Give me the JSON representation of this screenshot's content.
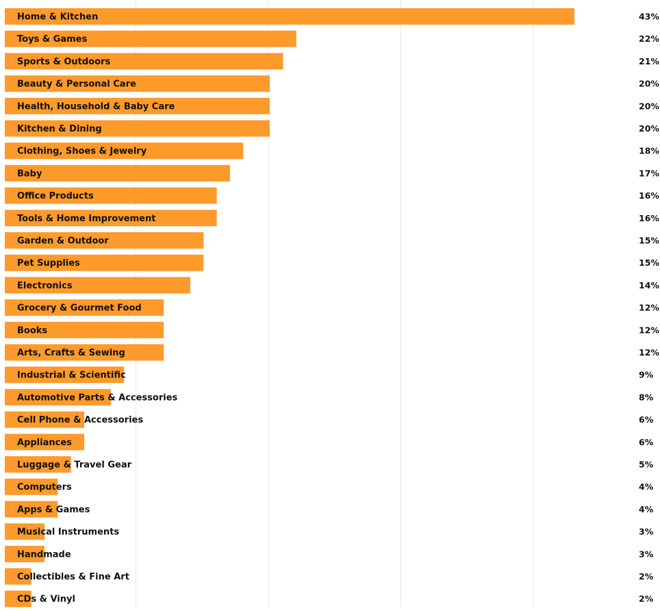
{
  "colors": {
    "bar": "#fd9a2c",
    "gridline": "#e6e6e6",
    "text": "#111111",
    "background": "#ffffff"
  },
  "chart_data": {
    "type": "bar",
    "orientation": "horizontal",
    "title": "",
    "xlabel": "",
    "ylabel": "",
    "xlim": [
      0,
      50
    ],
    "grid": true,
    "value_suffix": "%",
    "categories": [
      "Home & Kitchen",
      "Toys & Games",
      "Sports & Outdoors",
      "Beauty & Personal Care",
      "Health, Household & Baby Care",
      "Kitchen & Dining",
      "Clothing, Shoes & Jewelry",
      "Baby",
      "Office Products",
      "Tools & Home Improvement",
      "Garden & Outdoor",
      "Pet Supplies",
      "Electronics",
      "Grocery & Gourmet Food",
      "Books",
      "Arts, Crafts & Sewing",
      "Industrial & Scientific",
      "Automotive Parts & Accessories",
      "Cell Phone & Accessories",
      "Appliances",
      "Luggage & Travel Gear",
      "Computers",
      "Apps & Games",
      "Musical Instruments",
      "Handmade",
      "Collectibles & Fine Art",
      "CDs & Vinyl"
    ],
    "values": [
      43,
      22,
      21,
      20,
      20,
      20,
      18,
      17,
      16,
      16,
      15,
      15,
      14,
      12,
      12,
      12,
      9,
      8,
      6,
      6,
      5,
      4,
      4,
      3,
      3,
      2,
      2
    ],
    "value_labels": [
      "43%",
      "22%",
      "21%",
      "20%",
      "20%",
      "20%",
      "18%",
      "17%",
      "16%",
      "16%",
      "15%",
      "15%",
      "14%",
      "12%",
      "12%",
      "12%",
      "9%",
      "8%",
      "6%",
      "6%",
      "5%",
      "4%",
      "4%",
      "3%",
      "3%",
      "2%",
      "2%"
    ]
  }
}
